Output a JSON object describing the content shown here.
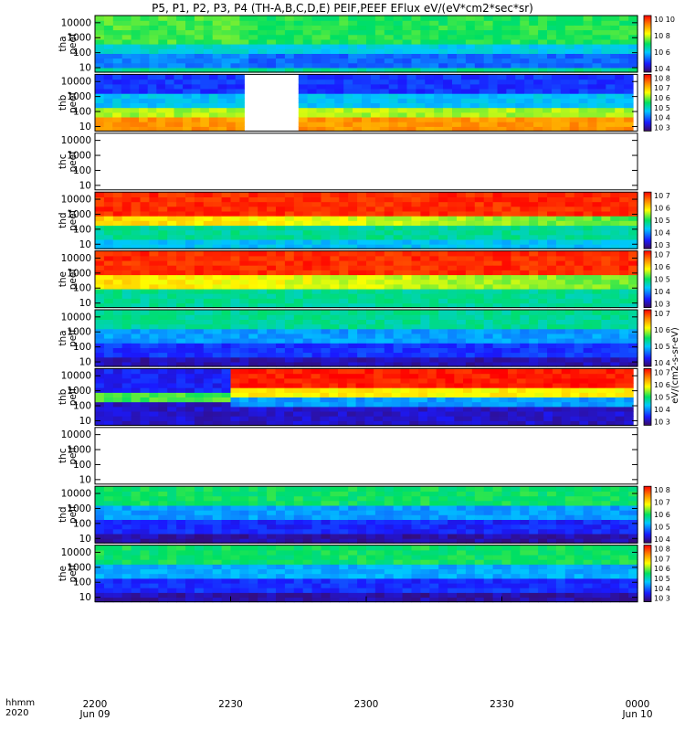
{
  "title": "P5, P1, P2, P3, P4 (TH-A,B,C,D,E) PEIF,PEEF EFlux eV/(eV*cm2*sec*sr)",
  "time_axis": {
    "row_label_1": "hhmm",
    "row_label_2": "2020",
    "ticks": [
      {
        "label": "2200",
        "date": "Jun 09"
      },
      {
        "label": "2230",
        "date": ""
      },
      {
        "label": "2300",
        "date": ""
      },
      {
        "label": "2330",
        "date": ""
      },
      {
        "label": "0000",
        "date": "Jun 10"
      }
    ]
  },
  "chart_data": {
    "type": "heatmap",
    "title": "P5, P1, P2, P3, P4 (TH-A,B,C,D,E) PEIF,PEEF EFlux eV/(eV*cm2*sec*sr)",
    "x_range": [
      "2020-06-09 22:00",
      "2020-06-10 00:00"
    ],
    "y_scale": "log",
    "y_ticks": [
      "10",
      "100",
      "1000",
      "10000"
    ],
    "colorbar_label": "eV/(cm2-s-sr-eV)",
    "panels": [
      {
        "probe": "tha",
        "product": "peef",
        "ylabel": "tha peef",
        "ylim": [
          5,
          30000
        ],
        "cbar_ticks": [
          "10^4",
          "10^6",
          "10^8",
          "10^10"
        ],
        "data_intervals": [
          [
            "22:00",
            "00:00"
          ]
        ],
        "dominant_level": "green-cyan with blue band"
      },
      {
        "probe": "thb",
        "product": "peef",
        "ylabel": "thb peef",
        "ylim": [
          5,
          30000
        ],
        "cbar_ticks": [
          "10^3",
          "10^4",
          "10^5",
          "10^6",
          "10^7",
          "10^8"
        ],
        "data_intervals": [
          [
            "22:00",
            "22:33"
          ],
          [
            "22:45",
            "23:59"
          ]
        ],
        "dominant_level": "orange low energy, blue high energy"
      },
      {
        "probe": "thc",
        "product": "peef",
        "ylabel": "thc peef",
        "ylim": [
          5,
          30000
        ],
        "cbar_ticks": [],
        "data_intervals": [],
        "dominant_level": "no data"
      },
      {
        "probe": "thd",
        "product": "peef",
        "ylabel": "thd peef",
        "ylim": [
          5,
          30000
        ],
        "cbar_ticks": [
          "10^3",
          "10^4",
          "10^5",
          "10^6",
          "10^7"
        ],
        "data_intervals": [
          [
            "22:00",
            "00:00"
          ]
        ],
        "dominant_level": "red high energy, green low energy"
      },
      {
        "probe": "the",
        "product": "peef",
        "ylabel": "the peef",
        "ylim": [
          5,
          30000
        ],
        "cbar_ticks": [
          "10^3",
          "10^4",
          "10^5",
          "10^6",
          "10^7"
        ],
        "data_intervals": [
          [
            "22:00",
            "00:00"
          ]
        ],
        "dominant_level": "red high energy, green low energy"
      },
      {
        "probe": "tha",
        "product": "peif",
        "ylabel": "tha peif",
        "ylim": [
          5,
          30000
        ],
        "cbar_ticks": [
          "10^4",
          "10^5",
          "10^6",
          "10^7"
        ],
        "data_intervals": [
          [
            "22:00",
            "00:00"
          ]
        ],
        "dominant_level": "cyan-green top, blue-purple bottom"
      },
      {
        "probe": "thb",
        "product": "peif",
        "ylabel": "thb peif",
        "ylim": [
          5,
          30000
        ],
        "cbar_ticks": [
          "10^3",
          "10^4",
          "10^5",
          "10^6",
          "10^7"
        ],
        "data_intervals": [
          [
            "22:00",
            "22:30"
          ],
          [
            "22:30",
            "23:59"
          ]
        ],
        "dominant_level": "bands of red/yellow/cyan/blue"
      },
      {
        "probe": "thc",
        "product": "peif",
        "ylabel": "thc peif",
        "ylim": [
          5,
          30000
        ],
        "cbar_ticks": [],
        "data_intervals": [],
        "dominant_level": "no data"
      },
      {
        "probe": "thd",
        "product": "peif",
        "ylabel": "thd peif",
        "ylim": [
          5,
          30000
        ],
        "cbar_ticks": [
          "10^4",
          "10^5",
          "10^6",
          "10^7",
          "10^8"
        ],
        "data_intervals": [
          [
            "22:00",
            "00:00"
          ]
        ],
        "dominant_level": "green top, blue-purple bottom"
      },
      {
        "probe": "the",
        "product": "peif",
        "ylabel": "the peif",
        "ylim": [
          5,
          30000
        ],
        "cbar_ticks": [
          "10^3",
          "10^4",
          "10^5",
          "10^6",
          "10^7",
          "10^8"
        ],
        "data_intervals": [
          [
            "22:00",
            "00:00"
          ]
        ],
        "dominant_level": "green top, blue-purple bottom"
      }
    ]
  }
}
